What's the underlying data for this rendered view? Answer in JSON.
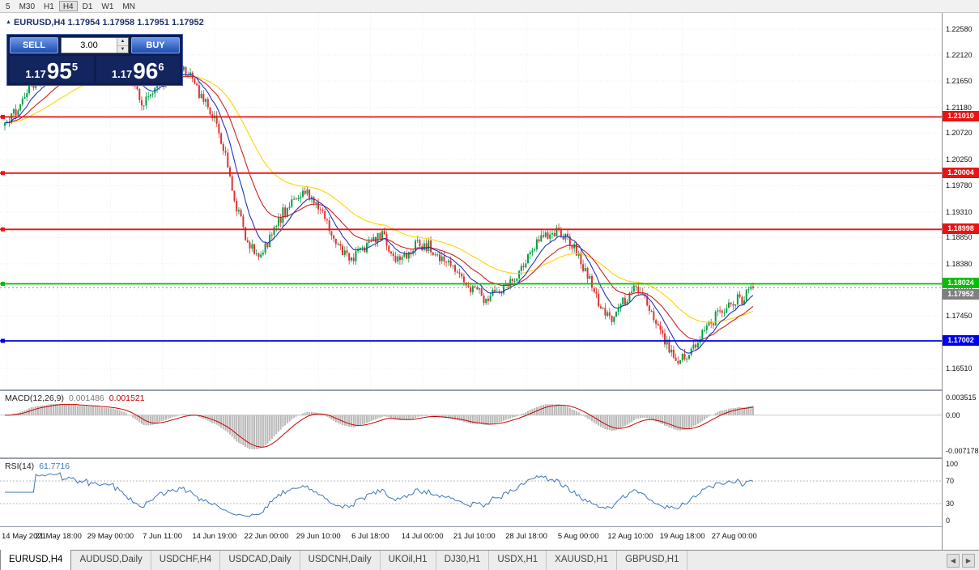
{
  "toolbar": {
    "timeframes": [
      {
        "label": "5",
        "active": false
      },
      {
        "label": "M30",
        "active": false
      },
      {
        "label": "H1",
        "active": false
      },
      {
        "label": "H4",
        "active": true
      },
      {
        "label": "D1",
        "active": false
      },
      {
        "label": "W1",
        "active": false
      },
      {
        "label": "MN",
        "active": false
      }
    ]
  },
  "chart_header": {
    "text": "EURUSD,H4 1.17954 1.17958 1.17951 1.17952"
  },
  "trade_panel": {
    "sell_label": "SELL",
    "buy_label": "BUY",
    "lot_value": "3.00",
    "sell_price": {
      "prefix": "1.17",
      "big": "95",
      "sup": "5"
    },
    "buy_price": {
      "prefix": "1.17",
      "big": "96",
      "sup": "6"
    }
  },
  "levels": [
    {
      "price": 1.2101,
      "label": "1.21010",
      "color": "#ee1111"
    },
    {
      "price": 1.20004,
      "label": "1.20004",
      "color": "#ee1111"
    },
    {
      "price": 1.18998,
      "label": "1.18998",
      "color": "#ee1111"
    },
    {
      "price": 1.18024,
      "label": "1.18024",
      "color": "#00c000"
    },
    {
      "price": 1.17002,
      "label": "1.17002",
      "color": "#0000ee"
    }
  ],
  "current_price": {
    "value": 1.17952,
    "label": "1.17952",
    "color": "#7f7f7f"
  },
  "chart_data": {
    "type": "candlestick",
    "symbol": "EURUSD",
    "timeframe": "H4",
    "ohlc": {
      "open": 1.17954,
      "high": 1.17958,
      "low": 1.17951,
      "close": 1.17952
    },
    "bars": 340,
    "noise": 0.0011,
    "wick": 0.0009,
    "up_color": "#00a048",
    "down_color": "#dd3333",
    "ma_lines": [
      {
        "period": 52,
        "color": "#ffd400"
      },
      {
        "period": 24,
        "color": "#cc2222"
      },
      {
        "period": 10,
        "color": "#2233bb"
      }
    ],
    "y_ticks": [
      "1.22580",
      "1.22120",
      "1.21650",
      "1.21180",
      "1.20720",
      "1.20250",
      "1.19780",
      "1.19310",
      "1.18850",
      "1.18380",
      "1.17910",
      "1.17450",
      "1.16980",
      "1.16510"
    ],
    "x_labels": [
      "14 May 2021",
      "21 May 18:00",
      "29 May 00:00",
      "7 Jun 11:00",
      "14 Jun 19:00",
      "22 Jun 00:00",
      "29 Jun 10:00",
      "6 Jul 18:00",
      "14 Jul 00:00",
      "21 Jul 10:00",
      "28 Jul 18:00",
      "5 Aug 00:00",
      "12 Aug 10:00",
      "19 Aug 18:00",
      "27 Aug 00:00"
    ],
    "price_path": [
      [
        0.0,
        1.2085
      ],
      [
        0.015,
        1.211
      ],
      [
        0.03,
        1.215
      ],
      [
        0.05,
        1.2172
      ],
      [
        0.065,
        1.219
      ],
      [
        0.085,
        1.2205
      ],
      [
        0.105,
        1.2218
      ],
      [
        0.125,
        1.2228
      ],
      [
        0.145,
        1.2232
      ],
      [
        0.16,
        1.2205
      ],
      [
        0.175,
        1.215
      ],
      [
        0.185,
        1.2128
      ],
      [
        0.2,
        1.2155
      ],
      [
        0.215,
        1.2172
      ],
      [
        0.235,
        1.2185
      ],
      [
        0.25,
        1.2168
      ],
      [
        0.265,
        1.213
      ],
      [
        0.28,
        1.2108
      ],
      [
        0.295,
        1.203
      ],
      [
        0.31,
        1.1935
      ],
      [
        0.325,
        1.1875
      ],
      [
        0.34,
        1.1848
      ],
      [
        0.355,
        1.189
      ],
      [
        0.37,
        1.1925
      ],
      [
        0.385,
        1.1952
      ],
      [
        0.4,
        1.1972
      ],
      [
        0.415,
        1.1945
      ],
      [
        0.43,
        1.1912
      ],
      [
        0.445,
        1.1872
      ],
      [
        0.46,
        1.1848
      ],
      [
        0.475,
        1.1855
      ],
      [
        0.49,
        1.188
      ],
      [
        0.505,
        1.1892
      ],
      [
        0.52,
        1.1845
      ],
      [
        0.535,
        1.1852
      ],
      [
        0.55,
        1.1876
      ],
      [
        0.565,
        1.1868
      ],
      [
        0.58,
        1.185
      ],
      [
        0.595,
        1.1838
      ],
      [
        0.61,
        1.1815
      ],
      [
        0.625,
        1.1795
      ],
      [
        0.64,
        1.1778
      ],
      [
        0.655,
        1.1788
      ],
      [
        0.67,
        1.18
      ],
      [
        0.685,
        1.1818
      ],
      [
        0.7,
        1.185
      ],
      [
        0.715,
        1.1882
      ],
      [
        0.728,
        1.1898
      ],
      [
        0.74,
        1.189
      ],
      [
        0.755,
        1.1872
      ],
      [
        0.77,
        1.1845
      ],
      [
        0.785,
        1.1798
      ],
      [
        0.8,
        1.1752
      ],
      [
        0.812,
        1.1742
      ],
      [
        0.825,
        1.1765
      ],
      [
        0.838,
        1.1788
      ],
      [
        0.848,
        1.1795
      ],
      [
        0.858,
        1.1772
      ],
      [
        0.87,
        1.1735
      ],
      [
        0.882,
        1.1705
      ],
      [
        0.895,
        1.1675
      ],
      [
        0.905,
        1.1665
      ],
      [
        0.918,
        1.1685
      ],
      [
        0.932,
        1.1712
      ],
      [
        0.945,
        1.1738
      ],
      [
        0.958,
        1.1752
      ],
      [
        0.972,
        1.1762
      ],
      [
        0.985,
        1.1778
      ],
      [
        1.0,
        1.1795
      ]
    ]
  },
  "macd": {
    "name": "MACD(12,26,9)",
    "value_main": "0.001486",
    "value_signal": "0.001521",
    "axis": {
      "top": "0.003515",
      "zero": "0.00",
      "bottom": "-0.007178"
    },
    "range": [
      -0.007178,
      0.003515
    ],
    "hist_color": "#b8b8b8",
    "signal_color": "#cc0000"
  },
  "rsi": {
    "name": "RSI(14)",
    "value": "61.7716",
    "axis": [
      "100",
      "70",
      "30",
      "0"
    ],
    "levels": [
      70,
      30
    ],
    "line_color": "#3f76b8"
  },
  "tabs": {
    "items": [
      {
        "label": "EURUSD,H4",
        "active": true
      },
      {
        "label": "AUDUSD,Daily",
        "active": false
      },
      {
        "label": "USDCHF,H4",
        "active": false
      },
      {
        "label": "USDCAD,Daily",
        "active": false
      },
      {
        "label": "USDCNH,Daily",
        "active": false
      },
      {
        "label": "UKOil,H1",
        "active": false
      },
      {
        "label": "DJ30,H1",
        "active": false
      },
      {
        "label": "USDX,H1",
        "active": false
      },
      {
        "label": "XAUUSD,H1",
        "active": false
      },
      {
        "label": "GBPUSD,H1",
        "active": false
      }
    ],
    "prev_arrow": "◀",
    "next_arrow": "▶"
  }
}
